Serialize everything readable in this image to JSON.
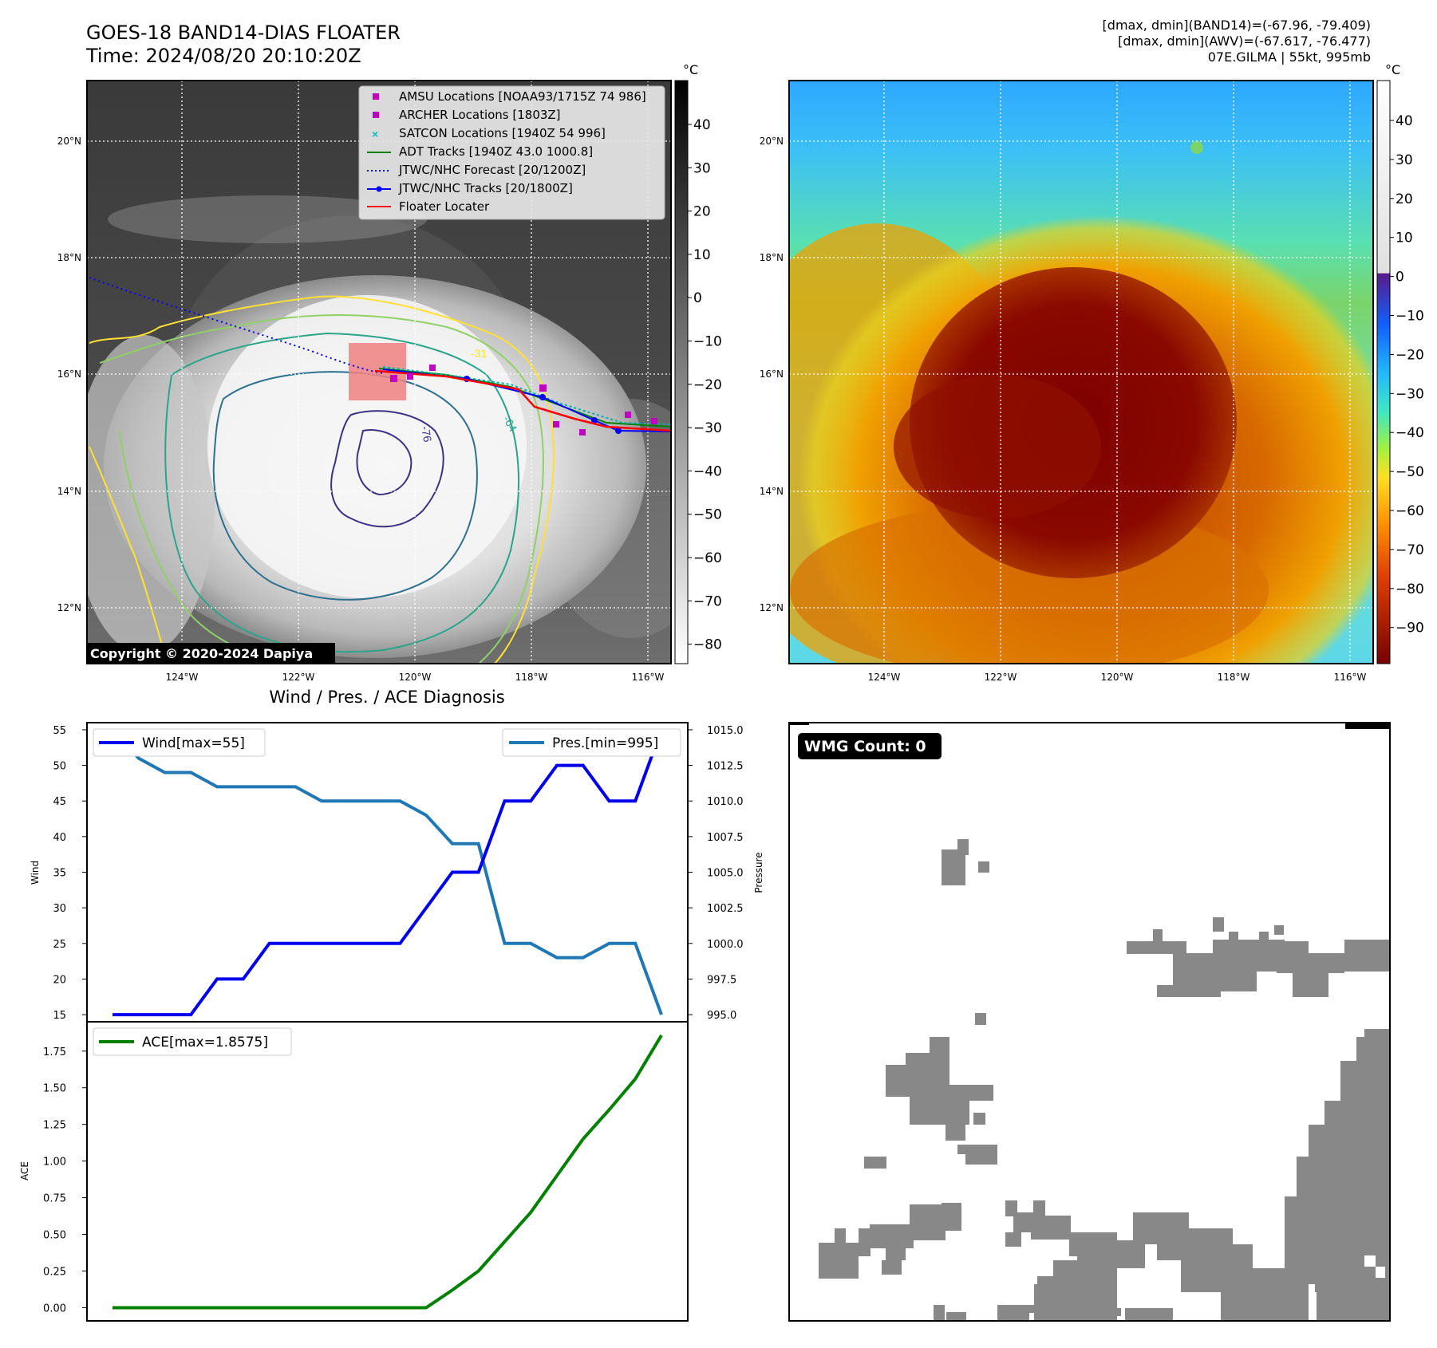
{
  "header": {
    "title_line1": "GOES-18 BAND14-DIAS FLOATER",
    "title_line2": "Time: 2024/08/20 20:10:20Z",
    "info_line1": "[dmax, dmin](BAND14)=(-67.96, -79.409)",
    "info_line2": "[dmax, dmin](AWV)=(-67.617, -76.477)",
    "info_line3": "07E.GILMA | 55kt, 995mb"
  },
  "copyright": "Copyright © 2020-2024 Dapiya",
  "map_axes": {
    "lon_labels": [
      "124°W",
      "122°W",
      "120°W",
      "118°W",
      "116°W"
    ],
    "lat_labels": [
      "20°N",
      "18°N",
      "16°N",
      "14°N",
      "12°N"
    ]
  },
  "colorbar_left": {
    "unit": "°C",
    "ticks": [
      "40",
      "30",
      "20",
      "10",
      "0",
      "−10",
      "−20",
      "−30",
      "−40",
      "−50",
      "−60",
      "−70",
      "−80"
    ]
  },
  "colorbar_right": {
    "unit": "°C",
    "ticks": [
      "40",
      "30",
      "20",
      "10",
      "0",
      "−10",
      "−20",
      "−30",
      "−40",
      "−50",
      "−60",
      "−70",
      "−80",
      "−90"
    ]
  },
  "legend": [
    {
      "label": "AMSU Locations [NOAA93/1715Z 74 986]",
      "marker": "square",
      "color": "#c000c0"
    },
    {
      "label": "ARCHER Locations [1803Z]",
      "marker": "square",
      "color": "#c000c0"
    },
    {
      "label": "SATCON Locations [1940Z 54 996]",
      "marker": "x",
      "color": "#00c0c0"
    },
    {
      "label": "ADT Tracks [1940Z 43.0 1000.8]",
      "marker": "line",
      "color": "#008000"
    },
    {
      "label": "JTWC/NHC Forecast [20/1200Z]",
      "marker": "dotted",
      "color": "#0000ff"
    },
    {
      "label": "JTWC/NHC Tracks [20/1800Z]",
      "marker": "line-dot",
      "color": "#0000ff"
    },
    {
      "label": "Floater Locater",
      "marker": "line",
      "color": "#ff0000"
    }
  ],
  "contour_labels": [
    "-31",
    "-76",
    "-64"
  ],
  "chart_data": [
    {
      "type": "line",
      "title": "Wind / Pres. / ACE Diagnosis",
      "ylabel": "Wind",
      "ylabel_right": "Pressure",
      "ylim": [
        14,
        56
      ],
      "ylim_right": [
        994.5,
        1015.5
      ],
      "yticks": [
        "55",
        "50",
        "45",
        "40",
        "35",
        "30",
        "25",
        "20",
        "15"
      ],
      "yticks_right": [
        "1015.0",
        "1012.5",
        "1010.0",
        "1007.5",
        "1005.0",
        "1002.5",
        "1000.0",
        "997.5",
        "995.0"
      ],
      "series": [
        {
          "name": "Wind[max=55]",
          "color": "#0000ee",
          "axis": "left",
          "values": [
            15,
            15,
            15,
            15,
            20,
            20,
            25,
            25,
            25,
            25,
            25,
            25,
            30,
            35,
            35,
            45,
            45,
            50,
            50,
            45,
            45,
            55
          ]
        },
        {
          "name": "Pres.[min=995]",
          "color": "#1f77b4",
          "axis": "right",
          "values": [
            1015,
            1013,
            1012,
            1012,
            1011,
            1011,
            1011,
            1011,
            1010,
            1010,
            1010,
            1010,
            1009,
            1007,
            1007,
            1000,
            1000,
            999,
            999,
            1000,
            1000,
            995
          ]
        }
      ]
    },
    {
      "type": "line",
      "ylabel": "ACE",
      "ylim": [
        -0.09,
        1.95
      ],
      "yticks": [
        "1.75",
        "1.50",
        "1.25",
        "1.00",
        "0.75",
        "0.50",
        "0.25",
        "0.00"
      ],
      "series": [
        {
          "name": "ACE[max=1.8575]",
          "color": "#008000",
          "values": [
            0,
            0,
            0,
            0,
            0,
            0,
            0,
            0,
            0,
            0,
            0,
            0,
            0,
            0.12,
            0.25,
            0.45,
            0.65,
            0.9,
            1.15,
            1.35,
            1.56,
            1.8575
          ]
        }
      ]
    }
  ],
  "wmg": {
    "count_label": "WMG Count: 0"
  }
}
